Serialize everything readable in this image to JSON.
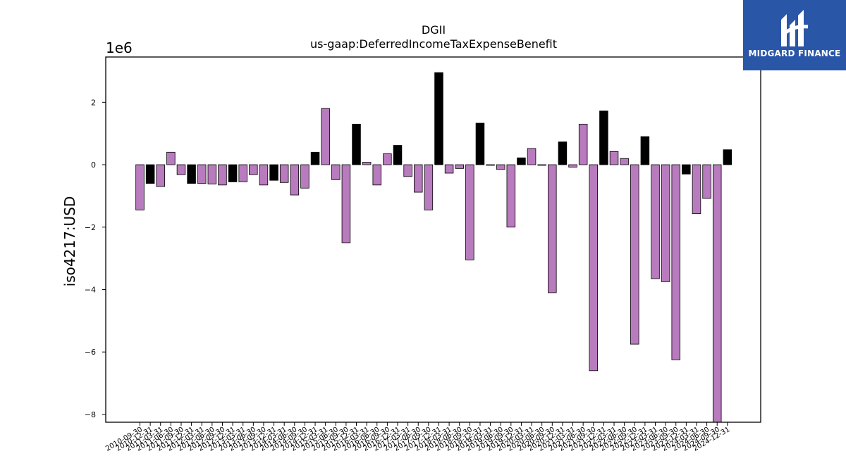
{
  "chart_data": {
    "type": "bar",
    "title": "DGII",
    "subtitle": "us-gaap:DeferredIncomeTaxExpenseBenefit",
    "ylabel": "iso4217:USD",
    "y_scale_label": "1e6",
    "ylim": [
      -8.25,
      3.45
    ],
    "yticks": [
      -8,
      -6,
      -4,
      -2,
      0,
      2
    ],
    "grid": false,
    "colors": {
      "quarter": "#b87bbd",
      "annual": "#000000"
    },
    "categories": [
      "2010-09-30",
      "2010-12-31",
      "2011-03-31",
      "2011-06-30",
      "2011-09-30",
      "2011-12-31",
      "2012-03-31",
      "2012-06-30",
      "2012-09-30",
      "2012-12-31",
      "2013-03-31",
      "2013-06-30",
      "2013-09-30",
      "2013-12-31",
      "2014-03-31",
      "2014-06-30",
      "2014-09-30",
      "2014-12-31",
      "2015-03-31",
      "2015-06-30",
      "2015-09-30",
      "2015-12-31",
      "2016-03-31",
      "2016-06-30",
      "2016-09-30",
      "2016-12-31",
      "2017-03-31",
      "2017-06-30",
      "2017-09-30",
      "2017-12-31",
      "2018-03-31",
      "2018-06-30",
      "2018-09-30",
      "2018-12-31",
      "2019-03-31",
      "2019-06-30",
      "2019-09-30",
      "2019-12-31",
      "2020-03-31",
      "2020-06-30",
      "2020-09-30",
      "2020-12-31",
      "2021-03-31",
      "2021-06-30",
      "2021-09-30",
      "2021-12-31",
      "2022-03-31",
      "2022-06-30",
      "2022-09-30",
      "2022-12-31",
      "2023-03-31",
      "2023-06-30",
      "2023-09-30",
      "2023-12-31",
      "2024-03-31",
      "2024-06-30",
      "2024-09-30",
      "2024-12-31"
    ],
    "values": [
      -1.45,
      -0.6,
      -0.7,
      0.4,
      -0.32,
      -0.6,
      -0.6,
      -0.62,
      -0.65,
      -0.55,
      -0.55,
      -0.32,
      -0.65,
      -0.5,
      -0.57,
      -0.97,
      -0.75,
      0.4,
      1.8,
      -0.48,
      -2.5,
      1.3,
      0.08,
      -0.65,
      0.35,
      0.62,
      -0.38,
      -0.88,
      -1.45,
      2.95,
      -0.27,
      -0.12,
      -3.05,
      1.33,
      -0.02,
      -0.15,
      -2.0,
      0.22,
      0.52,
      -0.02,
      -4.1,
      0.73,
      -0.08,
      1.3,
      -6.6,
      1.72,
      0.42,
      0.2,
      -5.75,
      0.9,
      -3.65,
      -3.75,
      -6.25,
      -0.3,
      -1.57,
      -1.08,
      -8.25,
      0.48
    ],
    "kinds": [
      "q",
      "a",
      "q",
      "q",
      "q",
      "a",
      "q",
      "q",
      "q",
      "a",
      "q",
      "q",
      "q",
      "a",
      "q",
      "q",
      "q",
      "a",
      "q",
      "q",
      "q",
      "a",
      "q",
      "q",
      "q",
      "a",
      "q",
      "q",
      "q",
      "a",
      "q",
      "q",
      "q",
      "a",
      "q",
      "q",
      "q",
      "a",
      "q",
      "q",
      "q",
      "a",
      "q",
      "q",
      "q",
      "a",
      "q",
      "q",
      "q",
      "a",
      "q",
      "q",
      "q",
      "a",
      "q",
      "q",
      "q",
      "a"
    ]
  },
  "logo": {
    "text": "MIDGARD FINANCE",
    "icon": "midgard-logo-icon"
  }
}
